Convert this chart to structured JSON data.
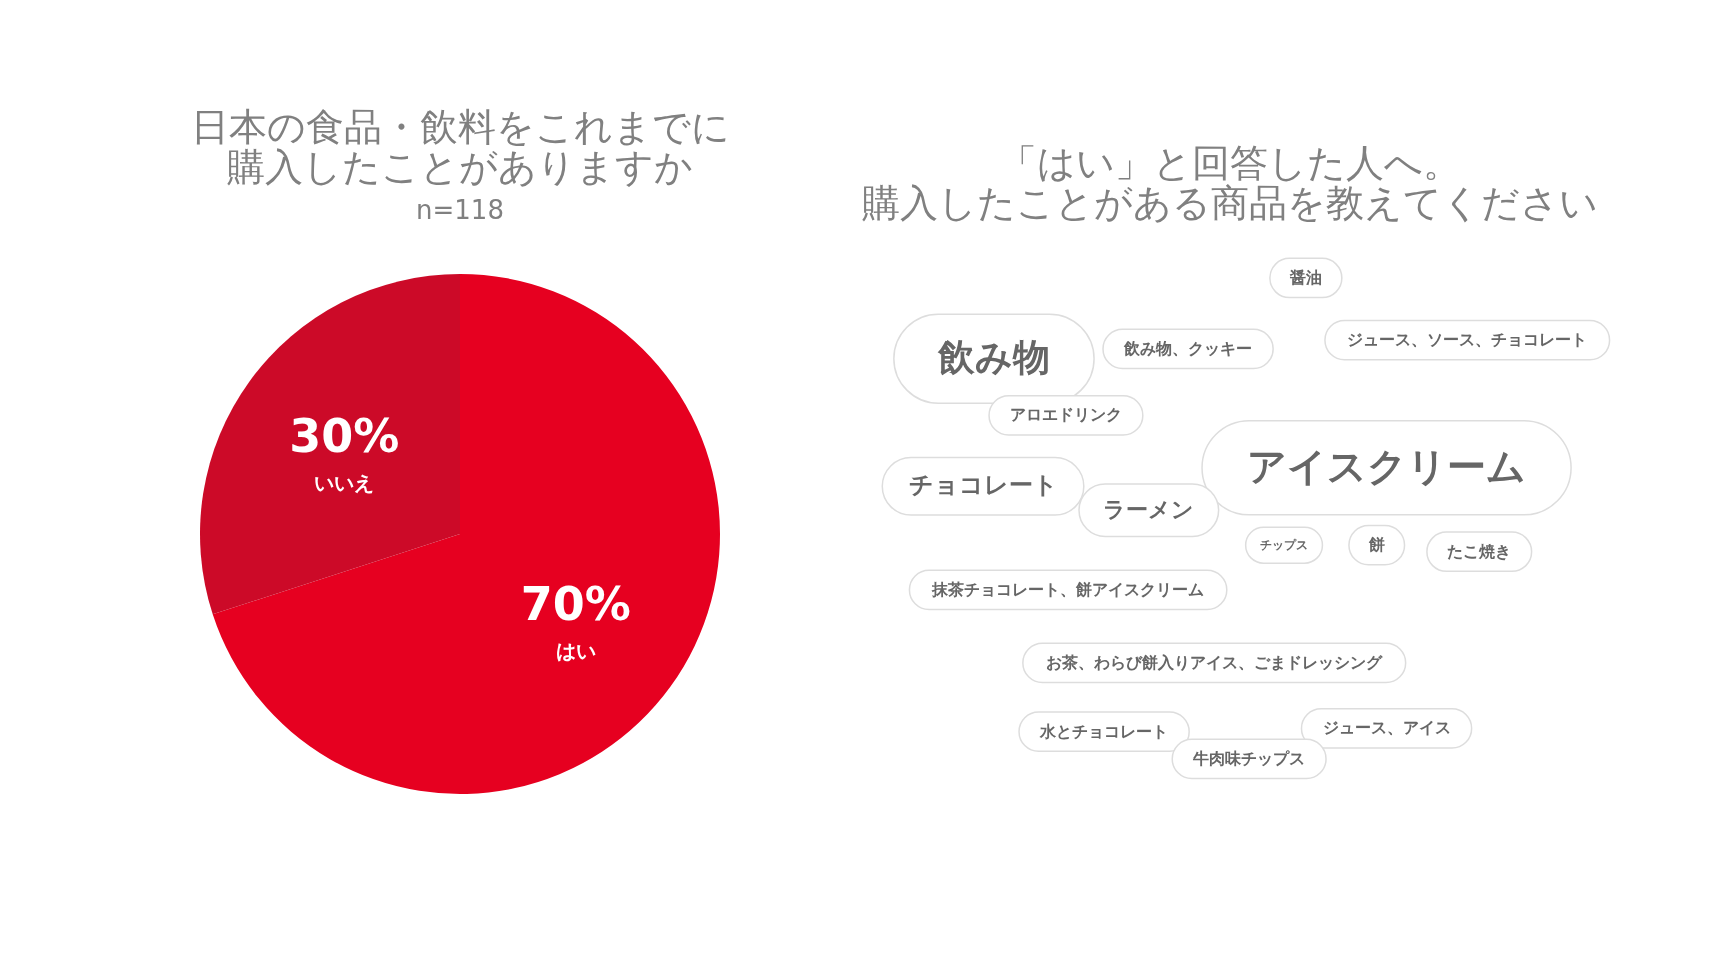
{
  "chart_data": [
    {
      "type": "pie",
      "title": [
        "日本の食品・飲料をこれまでに",
        "購入したことがありますか"
      ],
      "subtitle": "n=118",
      "categories": [
        "はい",
        "いいえ"
      ],
      "values": [
        70,
        30
      ],
      "colors": [
        "#e60020",
        "#cc0a28"
      ],
      "value_labels": [
        "70%",
        "30%"
      ],
      "legend": false
    },
    {
      "type": "other",
      "title": [
        "「はい」と回答した人へ。",
        "購入したことがある商品を教えてください"
      ],
      "annotations": [
        "醤油",
        "飲み物",
        "飲み物、クッキー",
        "ジュース、ソース、チョコレート",
        "アロエドリンク",
        "アイスクリーム",
        "チョコレート",
        "ラーメン",
        "チップス",
        "餅",
        "たこ焼き",
        "抹茶チョコレート、餅アイスクリーム",
        "お茶、わらび餅入りアイス、ごまドレッシング",
        "水とチョコレート",
        "ジュース、アイス",
        "牛肉味チップス"
      ]
    }
  ]
}
